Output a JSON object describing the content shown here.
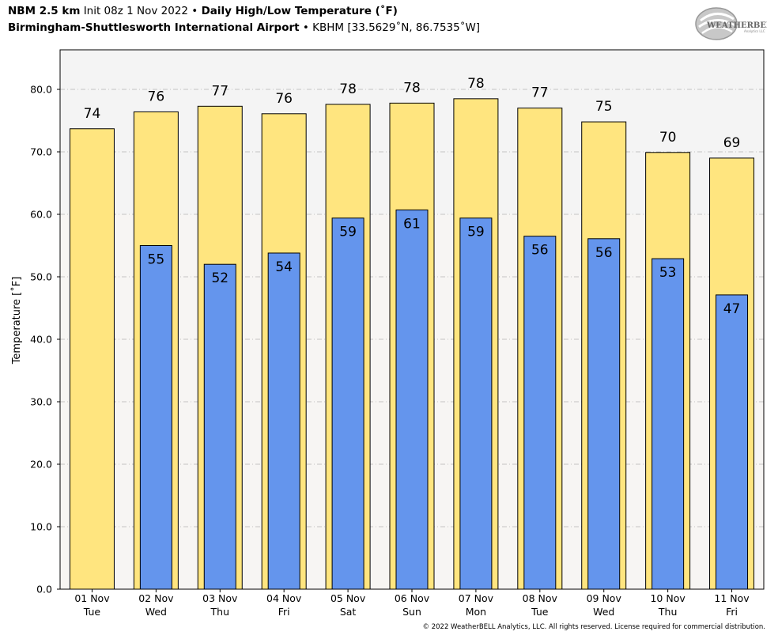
{
  "header": {
    "line1": {
      "model": "NBM 2.5 km",
      "init": "Init 08z 1 Nov 2022",
      "sep": "•",
      "title": "Daily High/Low Temperature (˚F)"
    },
    "line2": {
      "location": "Birmingham-Shuttlesworth International Airport",
      "sep": "•",
      "station": "KBHM [33.5629˚N, 86.7535˚W]"
    }
  },
  "logo": {
    "text": "WEATHERBELL",
    "subtext": "Analytics LLC"
  },
  "copyright": "© 2022 WeatherBELL Analytics, LLC. All rights reserved. License required for commercial distribution.",
  "colors": {
    "high_bar": "#FFE57F",
    "low_bar": "#6495ED",
    "plot_bg": "#F4F4F4",
    "plot_bg_lower": "#F7F5F3"
  },
  "chart_data": {
    "type": "bar",
    "categories": [
      "01 Nov\nTue",
      "02 Nov\nWed",
      "03 Nov\nThu",
      "04 Nov\nFri",
      "05 Nov\nSat",
      "06 Nov\nSun",
      "07 Nov\nMon",
      "08 Nov\nTue",
      "09 Nov\nWed",
      "10 Nov\nThu",
      "11 Nov\nFri"
    ],
    "dates": [
      "01 Nov",
      "02 Nov",
      "03 Nov",
      "04 Nov",
      "05 Nov",
      "06 Nov",
      "07 Nov",
      "08 Nov",
      "09 Nov",
      "10 Nov",
      "11 Nov"
    ],
    "weekdays": [
      "Tue",
      "Wed",
      "Thu",
      "Fri",
      "Sat",
      "Sun",
      "Mon",
      "Tue",
      "Wed",
      "Thu",
      "Fri"
    ],
    "series": [
      {
        "name": "High",
        "values": [
          73.7,
          76.4,
          77.3,
          76.1,
          77.6,
          77.8,
          78.5,
          77.0,
          74.8,
          69.9,
          69.0
        ],
        "labels": [
          "74",
          "76",
          "77",
          "76",
          "78",
          "78",
          "78",
          "77",
          "75",
          "70",
          "69"
        ]
      },
      {
        "name": "Low",
        "values": [
          null,
          55.0,
          52.0,
          53.8,
          59.4,
          60.7,
          59.4,
          56.5,
          56.1,
          52.9,
          47.1
        ],
        "labels": [
          null,
          "55",
          "52",
          "54",
          "59",
          "61",
          "59",
          "56",
          "56",
          "53",
          "47"
        ]
      }
    ],
    "title": "",
    "xlabel": "",
    "ylabel": "Temperature [˚F]",
    "ylim": [
      0,
      80
    ],
    "yticks": [
      "0.0",
      "10.0",
      "20.0",
      "30.0",
      "40.0",
      "50.0",
      "60.0",
      "70.0",
      "80.0"
    ],
    "grid": true
  }
}
